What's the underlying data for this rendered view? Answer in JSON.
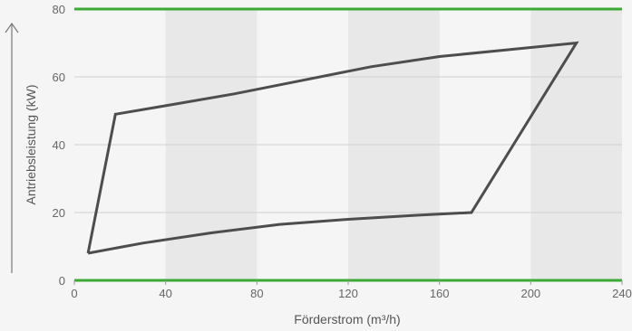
{
  "chart_data": {
    "type": "line",
    "xlabel": "Förderstrom (m³/h)",
    "ylabel": "Antriebsleistung (kW)",
    "xlim": [
      0,
      240
    ],
    "ylim": [
      0,
      80
    ],
    "xticks": [
      0,
      40,
      80,
      120,
      160,
      200,
      240
    ],
    "yticks": [
      0,
      20,
      40,
      60,
      80
    ],
    "x_tick_labels": [
      "0",
      "40",
      "80",
      "120",
      "160",
      "200",
      "240"
    ],
    "y_tick_labels": [
      "0",
      "20",
      "40",
      "60",
      "80"
    ],
    "grid": true,
    "series": [
      {
        "closed": true,
        "points": [
          [
            6,
            8
          ],
          [
            30,
            11
          ],
          [
            60,
            14
          ],
          [
            90,
            16.5
          ],
          [
            120,
            18
          ],
          [
            150,
            19.2
          ],
          [
            174,
            20
          ],
          [
            220,
            70
          ],
          [
            190,
            68
          ],
          [
            160,
            66
          ],
          [
            130,
            63
          ],
          [
            100,
            59
          ],
          [
            70,
            55
          ],
          [
            40,
            51.5
          ],
          [
            18,
            49
          ],
          [
            6,
            8
          ]
        ]
      }
    ],
    "colors": {
      "line": "#4d4d4d",
      "limit_lines": "#3aaa35",
      "band": "#e8e8e8",
      "background": "#f5f5f5"
    }
  }
}
